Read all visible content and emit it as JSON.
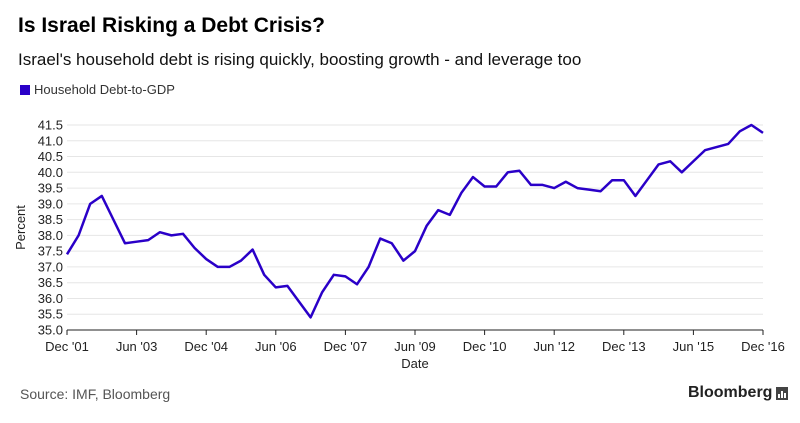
{
  "title": "Is Israel Risking a Debt Crisis?",
  "subtitle": "Israel's household debt is rising quickly, boosting growth - and leverage too",
  "source": "Source: IMF, Bloomberg",
  "brand": "Bloomberg",
  "brand_icon": "bloomberg-chart-icon",
  "colors": {
    "series": "#2a00c8",
    "grid": "#e6e6e6"
  },
  "chart_data": {
    "type": "line",
    "title": "Is Israel Risking a Debt Crisis?",
    "subtitle": "Israel's household debt is rising quickly, boosting growth - and leverage too",
    "xlabel": "Date",
    "ylabel": "Percent",
    "ylim": [
      35.0,
      41.5
    ],
    "yticks": [
      "35.0",
      "35.5",
      "36.0",
      "36.5",
      "37.0",
      "37.5",
      "38.0",
      "38.5",
      "39.0",
      "39.5",
      "40.0",
      "40.5",
      "41.0",
      "41.5"
    ],
    "xticks": [
      "Dec '01",
      "Jun '03",
      "Dec '04",
      "Jun '06",
      "Dec '07",
      "Jun '09",
      "Dec '10",
      "Jun '12",
      "Dec '13",
      "Jun '15",
      "Dec '16"
    ],
    "grid": true,
    "legend_position": "top-left",
    "series": [
      {
        "name": "Household Debt-to-GDP",
        "color": "#2a00c8",
        "x": [
          "Dec 2001",
          "Mar 2002",
          "Jun 2002",
          "Sep 2002",
          "Dec 2002",
          "Mar 2003",
          "Jun 2003",
          "Sep 2003",
          "Dec 2003",
          "Mar 2004",
          "Jun 2004",
          "Sep 2004",
          "Dec 2004",
          "Mar 2005",
          "Jun 2005",
          "Sep 2005",
          "Dec 2005",
          "Mar 2006",
          "Jun 2006",
          "Sep 2006",
          "Dec 2006",
          "Mar 2007",
          "Jun 2007",
          "Sep 2007",
          "Dec 2007",
          "Mar 2008",
          "Jun 2008",
          "Sep 2008",
          "Dec 2008",
          "Mar 2009",
          "Jun 2009",
          "Sep 2009",
          "Dec 2009",
          "Mar 2010",
          "Jun 2010",
          "Sep 2010",
          "Dec 2010",
          "Mar 2011",
          "Jun 2011",
          "Sep 2011",
          "Dec 2011",
          "Mar 2012",
          "Jun 2012",
          "Sep 2012",
          "Dec 2012",
          "Mar 2013",
          "Jun 2013",
          "Sep 2013",
          "Dec 2013",
          "Mar 2014",
          "Jun 2014",
          "Sep 2014",
          "Dec 2014",
          "Mar 2015",
          "Jun 2015",
          "Sep 2015",
          "Dec 2015",
          "Mar 2016",
          "Jun 2016",
          "Sep 2016",
          "Dec 2016"
        ],
        "values": [
          37.4,
          38.0,
          39.0,
          39.25,
          38.5,
          37.75,
          37.8,
          37.85,
          38.1,
          38.0,
          38.05,
          37.6,
          37.25,
          37.0,
          37.0,
          37.2,
          37.55,
          36.75,
          36.35,
          36.4,
          35.9,
          35.4,
          36.2,
          36.75,
          36.7,
          36.45,
          37.0,
          37.9,
          37.75,
          37.2,
          37.5,
          38.3,
          38.8,
          38.65,
          39.35,
          39.85,
          39.55,
          39.55,
          40.0,
          40.05,
          39.6,
          39.6,
          39.5,
          39.7,
          39.5,
          39.45,
          39.4,
          39.75,
          39.75,
          39.25,
          39.75,
          40.25,
          40.35,
          40.0,
          40.35,
          40.7,
          40.8,
          40.9,
          41.3,
          41.5,
          41.25
        ]
      }
    ]
  }
}
